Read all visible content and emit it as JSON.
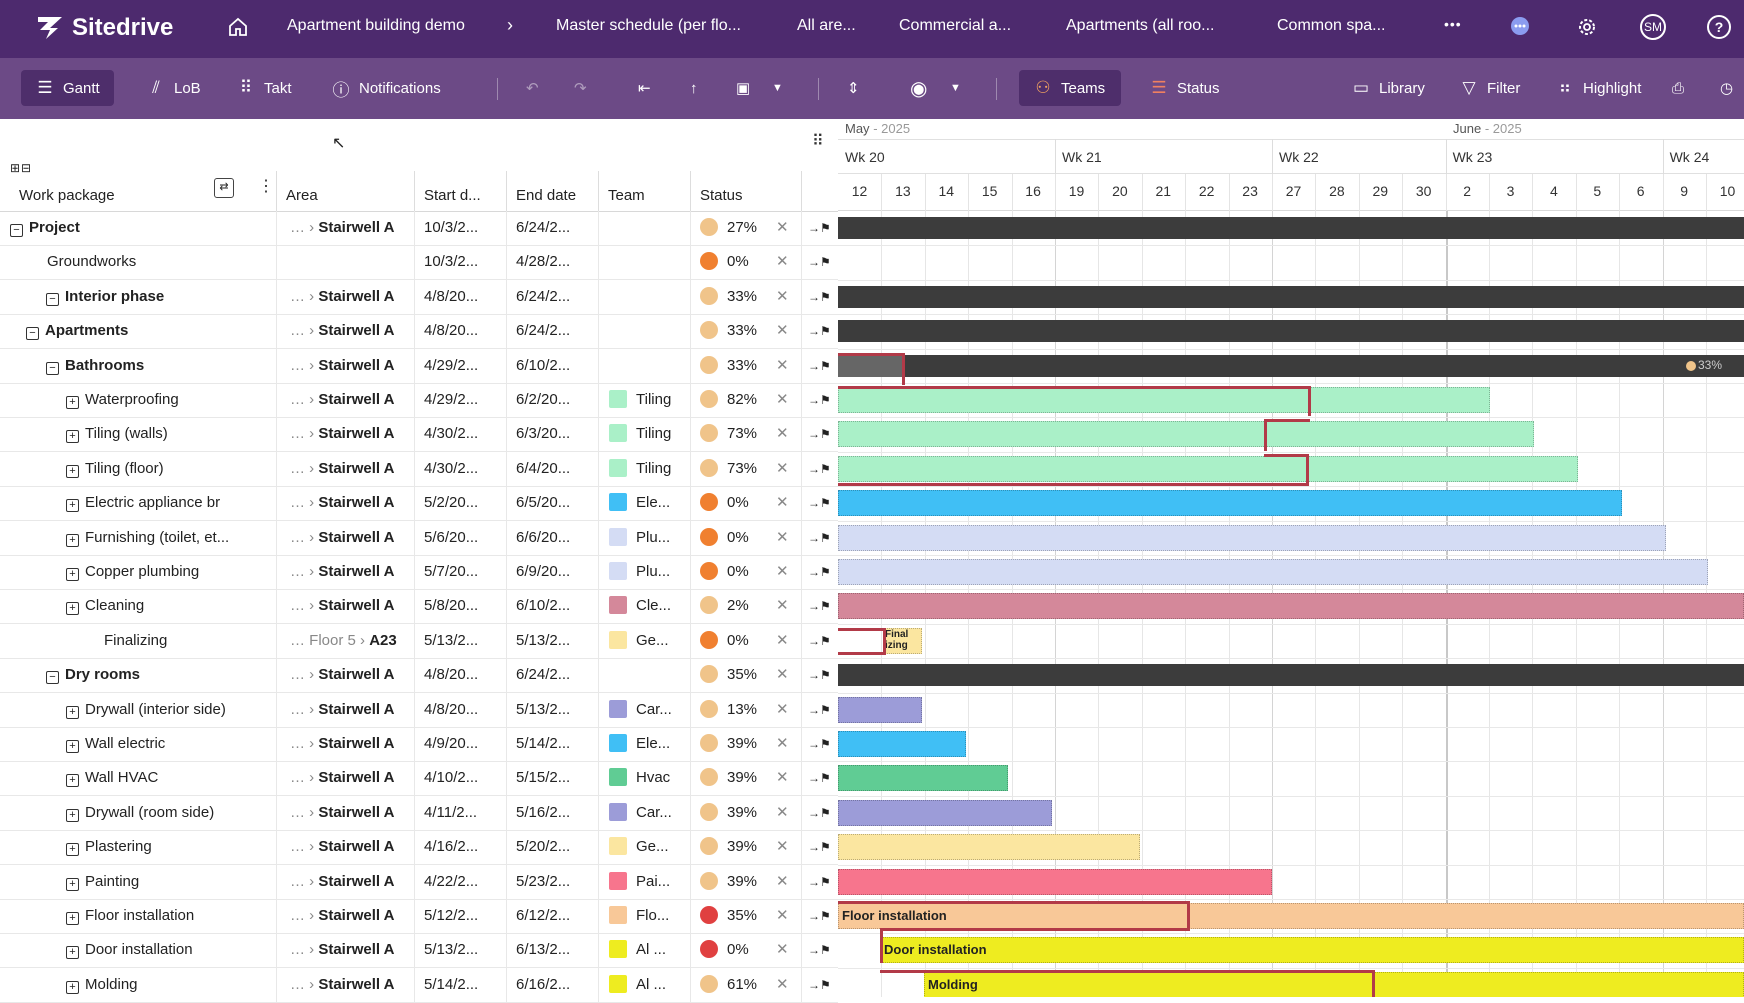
{
  "topbar": {
    "logo": "Sitedrive",
    "breadcrumbs": [
      "Apartment building demo",
      "Master schedule (per flo...",
      "All are...",
      "Commercial a...",
      "Apartments (all roo...",
      "Common spa..."
    ],
    "more": "•••",
    "avatar": "SM",
    "help": "?"
  },
  "toolbar": {
    "gantt": "Gantt",
    "lob": "LoB",
    "takt": "Takt",
    "notifications": "Notifications",
    "teams": "Teams",
    "status": "Status",
    "library": "Library",
    "filter": "Filter",
    "highlight": "Highlight"
  },
  "table": {
    "columns": {
      "work_package": "Work package",
      "area": "Area",
      "start": "Start d...",
      "end": "End date",
      "team": "Team",
      "status": "Status"
    },
    "rows": [
      {
        "name": "Project",
        "indent": 0,
        "toggle": "−",
        "bold": true,
        "area_prefix": "… ›",
        "area": "Stairwell A",
        "start": "10/3/2...",
        "end": "6/24/2...",
        "team": "",
        "team_color": "",
        "status_color": "#f0c48a",
        "pct": "27%"
      },
      {
        "name": "Groundworks",
        "indent": 1,
        "toggle": "",
        "bold": false,
        "area_prefix": "",
        "area": "",
        "start": "10/3/2...",
        "end": "4/28/2...",
        "team": "",
        "team_color": "",
        "status_color": "#f08030",
        "pct": "0%"
      },
      {
        "name": "Interior phase",
        "indent": 1,
        "toggle": "−",
        "bold": true,
        "area_prefix": "… ›",
        "area": "Stairwell A",
        "start": "4/8/20...",
        "end": "6/24/2...",
        "team": "",
        "team_color": "",
        "status_color": "#f0c48a",
        "pct": "33%"
      },
      {
        "name": "Apartments",
        "indent": 2,
        "toggle": "−",
        "bold": true,
        "area_prefix": "… ›",
        "area": "Stairwell A",
        "start": "4/8/20...",
        "end": "6/24/2...",
        "team": "",
        "team_color": "",
        "status_color": "#f0c48a",
        "pct": "33%"
      },
      {
        "name": "Bathrooms",
        "indent": 3,
        "toggle": "−",
        "bold": true,
        "area_prefix": "… ›",
        "area": "Stairwell A",
        "start": "4/29/2...",
        "end": "6/10/2...",
        "team": "",
        "team_color": "",
        "status_color": "#f0c48a",
        "pct": "33%"
      },
      {
        "name": "Waterproofing",
        "indent": 4,
        "toggle": "+",
        "bold": false,
        "area_prefix": "… ›",
        "area": "Stairwell A",
        "start": "4/29/2...",
        "end": "6/2/20...",
        "team": "Tiling",
        "team_color": "#aaf0c8",
        "status_color": "#f0c48a",
        "pct": "82%"
      },
      {
        "name": "Tiling (walls)",
        "indent": 4,
        "toggle": "+",
        "bold": false,
        "area_prefix": "… ›",
        "area": "Stairwell A",
        "start": "4/30/2...",
        "end": "6/3/20...",
        "team": "Tiling",
        "team_color": "#aaf0c8",
        "status_color": "#f0c48a",
        "pct": "73%"
      },
      {
        "name": "Tiling (floor)",
        "indent": 4,
        "toggle": "+",
        "bold": false,
        "area_prefix": "… ›",
        "area": "Stairwell A",
        "start": "4/30/2...",
        "end": "6/4/20...",
        "team": "Tiling",
        "team_color": "#aaf0c8",
        "status_color": "#f0c48a",
        "pct": "73%"
      },
      {
        "name": "Electric appliance br",
        "indent": 4,
        "toggle": "+",
        "bold": false,
        "area_prefix": "… ›",
        "area": "Stairwell A",
        "start": "5/2/20...",
        "end": "6/5/20...",
        "team": "Ele...",
        "team_color": "#40bff5",
        "status_color": "#f08030",
        "pct": "0%"
      },
      {
        "name": "Furnishing (toilet, et...",
        "indent": 4,
        "toggle": "+",
        "bold": false,
        "area_prefix": "… ›",
        "area": "Stairwell A",
        "start": "5/6/20...",
        "end": "6/6/20...",
        "team": "Plu...",
        "team_color": "#d4dcf4",
        "status_color": "#f08030",
        "pct": "0%"
      },
      {
        "name": "Copper plumbing",
        "indent": 4,
        "toggle": "+",
        "bold": false,
        "area_prefix": "… ›",
        "area": "Stairwell A",
        "start": "5/7/20...",
        "end": "6/9/20...",
        "team": "Plu...",
        "team_color": "#d4dcf4",
        "status_color": "#f08030",
        "pct": "0%"
      },
      {
        "name": "Cleaning",
        "indent": 4,
        "toggle": "+",
        "bold": false,
        "area_prefix": "… ›",
        "area": "Stairwell A",
        "start": "5/8/20...",
        "end": "6/10/2...",
        "team": "Cle...",
        "team_color": "#d4889a",
        "status_color": "#f0c48a",
        "pct": "2%"
      },
      {
        "name": "Finalizing",
        "indent": 5,
        "toggle": "",
        "bold": false,
        "area_prefix": "… Floor 5 ›",
        "area": "A23",
        "start": "5/13/2...",
        "end": "5/13/2...",
        "team": "Ge...",
        "team_color": "#fbe6a0",
        "status_color": "#f08030",
        "pct": "0%"
      },
      {
        "name": "Dry rooms",
        "indent": 3,
        "toggle": "−",
        "bold": true,
        "area_prefix": "… ›",
        "area": "Stairwell A",
        "start": "4/8/20...",
        "end": "6/24/2...",
        "team": "",
        "team_color": "",
        "status_color": "#f0c48a",
        "pct": "35%"
      },
      {
        "name": "Drywall (interior side)",
        "indent": 4,
        "toggle": "+",
        "bold": false,
        "area_prefix": "… ›",
        "area": "Stairwell A",
        "start": "4/8/20...",
        "end": "5/13/2...",
        "team": "Car...",
        "team_color": "#9c9cd8",
        "status_color": "#f0c48a",
        "pct": "13%"
      },
      {
        "name": "Wall electric",
        "indent": 4,
        "toggle": "+",
        "bold": false,
        "area_prefix": "… ›",
        "area": "Stairwell A",
        "start": "4/9/20...",
        "end": "5/14/2...",
        "team": "Ele...",
        "team_color": "#40bff5",
        "status_color": "#f0c48a",
        "pct": "39%"
      },
      {
        "name": "Wall HVAC",
        "indent": 4,
        "toggle": "+",
        "bold": false,
        "area_prefix": "… ›",
        "area": "Stairwell A",
        "start": "4/10/2...",
        "end": "5/15/2...",
        "team": "Hvac",
        "team_color": "#60cc94",
        "status_color": "#f0c48a",
        "pct": "39%"
      },
      {
        "name": "Drywall (room side)",
        "indent": 4,
        "toggle": "+",
        "bold": false,
        "area_prefix": "… ›",
        "area": "Stairwell A",
        "start": "4/11/2...",
        "end": "5/16/2...",
        "team": "Car...",
        "team_color": "#9c9cd8",
        "status_color": "#f0c48a",
        "pct": "39%"
      },
      {
        "name": "Plastering",
        "indent": 4,
        "toggle": "+",
        "bold": false,
        "area_prefix": "… ›",
        "area": "Stairwell A",
        "start": "4/16/2...",
        "end": "5/20/2...",
        "team": "Ge...",
        "team_color": "#fbe6a0",
        "status_color": "#f0c48a",
        "pct": "39%"
      },
      {
        "name": "Painting",
        "indent": 4,
        "toggle": "+",
        "bold": false,
        "area_prefix": "… ›",
        "area": "Stairwell A",
        "start": "4/22/2...",
        "end": "5/23/2...",
        "team": "Pai...",
        "team_color": "#f7758d",
        "status_color": "#f0c48a",
        "pct": "39%"
      },
      {
        "name": "Floor installation",
        "indent": 4,
        "toggle": "+",
        "bold": false,
        "area_prefix": "… ›",
        "area": "Stairwell A",
        "start": "5/12/2...",
        "end": "6/12/2...",
        "team": "Flo...",
        "team_color": "#f8c898",
        "status_color": "#e04040",
        "pct": "35%"
      },
      {
        "name": "Door installation",
        "indent": 4,
        "toggle": "+",
        "bold": false,
        "area_prefix": "… ›",
        "area": "Stairwell A",
        "start": "5/13/2...",
        "end": "6/13/2...",
        "team": "Al ...",
        "team_color": "#eeec20",
        "status_color": "#e04040",
        "pct": "0%"
      },
      {
        "name": "Molding",
        "indent": 4,
        "toggle": "+",
        "bold": false,
        "area_prefix": "… ›",
        "area": "Stairwell A",
        "start": "5/14/2...",
        "end": "6/16/2...",
        "team": "Al ...",
        "team_color": "#eeec20",
        "status_color": "#f0c48a",
        "pct": "61%"
      }
    ]
  },
  "gantt": {
    "months": [
      {
        "name": "May",
        "year": "- 2025"
      },
      {
        "name": "June",
        "year": "- 2025"
      }
    ],
    "weeks": [
      "Wk 20",
      "Wk 21",
      "Wk 22",
      "Wk 23",
      "Wk 24"
    ],
    "days": [
      "12",
      "13",
      "14",
      "15",
      "16",
      "19",
      "20",
      "21",
      "22",
      "23",
      "27",
      "28",
      "29",
      "30",
      "2",
      "3",
      "4",
      "5",
      "6",
      "9",
      "10"
    ],
    "summary_pct": "33%",
    "labels": {
      "finalizing_1": "Final",
      "finalizing_2": "izing",
      "floor": "Floor installation",
      "door": "Door installation",
      "molding": "Molding"
    }
  }
}
